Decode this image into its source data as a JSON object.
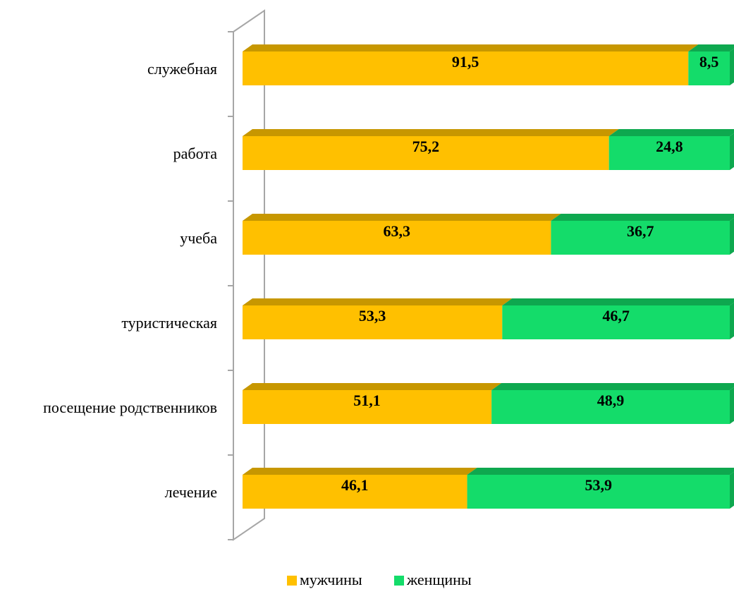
{
  "chart_data": {
    "type": "bar",
    "orientation": "horizontal",
    "stacked": "percent",
    "style": "3d",
    "categories": [
      "служебная",
      "работа",
      "учеба",
      "туристическая",
      "посещение родственников",
      "лечение"
    ],
    "series": [
      {
        "name": "мужчины",
        "values": [
          91.5,
          75.2,
          63.3,
          53.3,
          51.1,
          46.1
        ],
        "labels": [
          "91,5",
          "75,2",
          "63,3",
          "53,3",
          "51,1",
          "46,1"
        ]
      },
      {
        "name": "женщины",
        "values": [
          8.5,
          24.8,
          36.7,
          46.7,
          48.9,
          53.9
        ],
        "labels": [
          "8,5",
          "24,8",
          "36,7",
          "46,7",
          "48,9",
          "53,9"
        ]
      }
    ],
    "colors": {
      "мужчины": {
        "front": "#ffc000",
        "top": "#c79700"
      },
      "женщины": {
        "front": "#14dc6a",
        "top": "#0ea84f"
      }
    },
    "xlim": [
      0,
      100
    ],
    "grid": false,
    "legend": "bottom-center"
  }
}
